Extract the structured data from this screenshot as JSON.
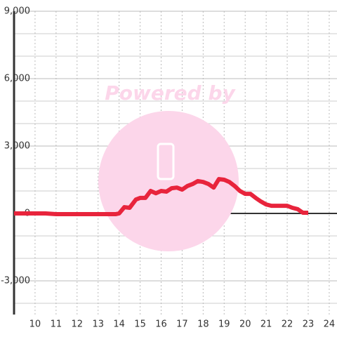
{
  "chart_data": {
    "type": "line",
    "watermark": "Powered by",
    "x": [
      9,
      10.5,
      11,
      13.85,
      14,
      14.25,
      14.5,
      14.8,
      15,
      15.25,
      15.5,
      15.75,
      16,
      16.25,
      16.5,
      16.75,
      17,
      17.25,
      17.5,
      17.75,
      18,
      18.25,
      18.5,
      18.75,
      19,
      19.25,
      19.5,
      19.75,
      20,
      20.25,
      20.5,
      20.75,
      21,
      21.25,
      21.5,
      22,
      22.25,
      22.5,
      22.75,
      23
    ],
    "series": [
      {
        "color": "#e8243c",
        "values": [
          0,
          0,
          -30,
          -30,
          0,
          280,
          250,
          620,
          690,
          690,
          1000,
          900,
          1000,
          970,
          1120,
          1150,
          1060,
          1220,
          1310,
          1440,
          1400,
          1310,
          1150,
          1530,
          1500,
          1400,
          1220,
          1000,
          870,
          870,
          690,
          530,
          400,
          340,
          340,
          340,
          250,
          190,
          30,
          30
        ]
      }
    ],
    "xlim": [
      9,
      24.37
    ],
    "xticks": [
      10,
      11,
      12,
      13,
      14,
      15,
      16,
      17,
      18,
      19,
      20,
      21,
      22,
      23,
      24
    ],
    "ylim": [
      -4500,
      9000
    ],
    "yticks": [
      {
        "value": 9000,
        "label": "9,000"
      },
      {
        "value": 6000,
        "label": "6,000"
      },
      {
        "value": 3000,
        "label": "3,000"
      },
      0,
      {
        "value": -3000,
        "label": "-3,000"
      }
    ],
    "grid": true,
    "grid_step": 1000
  }
}
